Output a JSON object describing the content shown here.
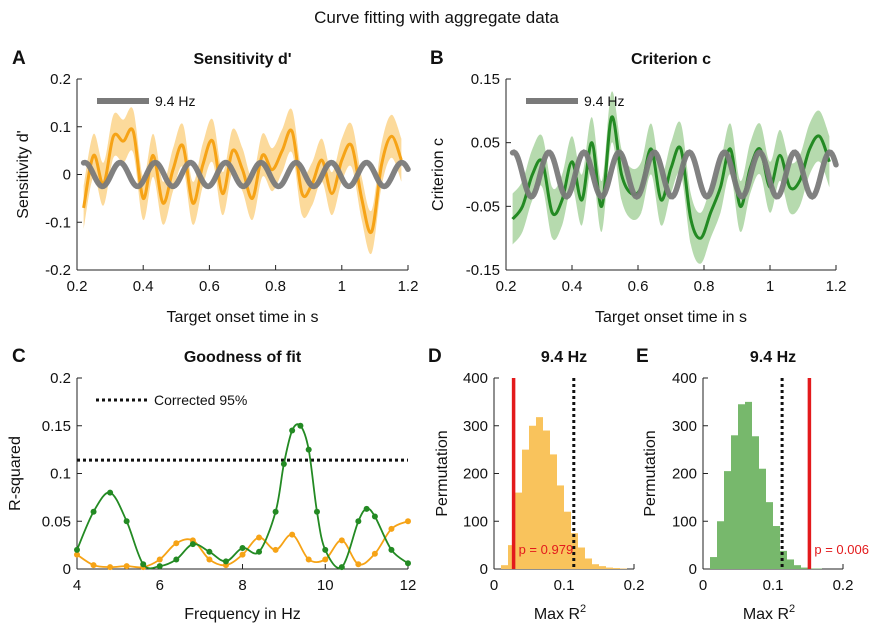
{
  "figure_title": "Curve fitting with aggregate data",
  "colors": {
    "orange": "#f6a316",
    "orange_band": "#fbd48a",
    "green": "#238a23",
    "green_band": "#a9d3a0",
    "gray": "#7a7a7a",
    "red": "#e31a1c",
    "hist_orange": "#f9c35c",
    "hist_green": "#77b86c"
  },
  "chart_data": [
    {
      "panel": "A",
      "type": "line",
      "title": "Sensitivity d'",
      "xlabel": "Target onset time in s",
      "ylabel": "Sensitivity d'",
      "xlim": [
        0.2,
        1.2
      ],
      "ylim": [
        -0.2,
        0.2
      ],
      "xticks": [
        "0.2",
        "0.4",
        "0.6",
        "0.8",
        "1",
        "1.2"
      ],
      "yticks": [
        "-0.2",
        "-0.1",
        "0",
        "0.1",
        "0.2"
      ],
      "series": [
        {
          "name": "",
          "kind": "data-with-band",
          "x": [
            0.22,
            0.25,
            0.28,
            0.31,
            0.34,
            0.37,
            0.4,
            0.43,
            0.46,
            0.49,
            0.52,
            0.55,
            0.58,
            0.61,
            0.64,
            0.67,
            0.7,
            0.73,
            0.76,
            0.79,
            0.82,
            0.85,
            0.88,
            0.91,
            0.94,
            0.97,
            1.0,
            1.03,
            1.06,
            1.09,
            1.12,
            1.15,
            1.18
          ],
          "y": [
            -0.07,
            0.04,
            -0.02,
            0.08,
            0.07,
            0.09,
            -0.05,
            0.04,
            -0.06,
            0.01,
            0.06,
            -0.06,
            0.02,
            0.07,
            -0.04,
            0.05,
            0.01,
            -0.05,
            0.04,
            0.01,
            0.05,
            0.09,
            -0.04,
            -0.02,
            0.03,
            -0.04,
            0.03,
            0.06,
            -0.05,
            -0.12,
            0.02,
            0.08,
            0.03
          ],
          "band": 0.045
        },
        {
          "name": "9.4 Hz",
          "kind": "sine-fit",
          "frequency_hz": 9.4,
          "amplitude": 0.025,
          "x_range": [
            0.22,
            1.2
          ]
        }
      ],
      "legend": [
        {
          "label": "9.4 Hz"
        }
      ],
      "legend_position": "top-left"
    },
    {
      "panel": "B",
      "type": "line",
      "title": "Criterion c",
      "xlabel": "Target onset time in s",
      "ylabel": "Criterion c",
      "xlim": [
        0.2,
        1.2
      ],
      "ylim": [
        -0.15,
        0.15
      ],
      "xticks": [
        "0.2",
        "0.4",
        "0.6",
        "0.8",
        "1",
        "1.2"
      ],
      "yticks": [
        "-0.15",
        "-0.05",
        "0.05",
        "0.15"
      ],
      "series": [
        {
          "name": "",
          "kind": "data-with-band",
          "x": [
            0.22,
            0.25,
            0.28,
            0.31,
            0.34,
            0.37,
            0.4,
            0.43,
            0.46,
            0.49,
            0.52,
            0.55,
            0.58,
            0.61,
            0.64,
            0.67,
            0.7,
            0.73,
            0.76,
            0.79,
            0.82,
            0.85,
            0.88,
            0.91,
            0.94,
            0.97,
            1.0,
            1.03,
            1.06,
            1.09,
            1.12,
            1.15,
            1.18
          ],
          "y": [
            -0.07,
            -0.05,
            0.0,
            0.02,
            -0.06,
            -0.04,
            0.02,
            -0.04,
            0.05,
            -0.05,
            0.09,
            0.0,
            -0.03,
            -0.02,
            0.04,
            -0.04,
            0.01,
            0.04,
            -0.07,
            -0.1,
            -0.06,
            -0.02,
            0.04,
            -0.05,
            0.01,
            0.04,
            -0.02,
            0.03,
            -0.02,
            -0.01,
            0.04,
            0.06,
            0.02
          ],
          "band": 0.04
        },
        {
          "name": "9.4 Hz",
          "kind": "sine-fit",
          "frequency_hz": 9.4,
          "amplitude": 0.035,
          "x_range": [
            0.22,
            1.2
          ]
        }
      ],
      "legend": [
        {
          "label": "9.4 Hz"
        }
      ],
      "legend_position": "top-left"
    },
    {
      "panel": "C",
      "type": "line",
      "title": "Goodness of fit",
      "xlabel": "Frequency in Hz",
      "ylabel": "R-squared",
      "xlim": [
        4,
        12
      ],
      "ylim": [
        0,
        0.2
      ],
      "xticks": [
        "4",
        "6",
        "8",
        "10",
        "12"
      ],
      "yticks": [
        "0",
        "0.05",
        "0.1",
        "0.15",
        "0.2"
      ],
      "threshold": {
        "label": "Corrected 95%",
        "value": 0.114
      },
      "series": [
        {
          "name": "",
          "color": "green",
          "x": [
            4.0,
            4.4,
            4.8,
            5.2,
            5.6,
            6.0,
            6.4,
            6.8,
            7.2,
            7.6,
            8.0,
            8.4,
            8.8,
            9.0,
            9.2,
            9.4,
            9.6,
            9.8,
            10.0,
            10.4,
            10.8,
            11.0,
            11.2,
            11.6,
            12.0
          ],
          "y": [
            0.02,
            0.06,
            0.08,
            0.05,
            0.005,
            0.003,
            0.01,
            0.026,
            0.018,
            0.008,
            0.022,
            0.018,
            0.06,
            0.11,
            0.145,
            0.15,
            0.125,
            0.06,
            0.02,
            0.002,
            0.05,
            0.063,
            0.055,
            0.02,
            0.006
          ]
        },
        {
          "name": "",
          "color": "orange",
          "x": [
            4.0,
            4.4,
            4.8,
            5.2,
            5.6,
            6.0,
            6.4,
            6.8,
            7.2,
            7.6,
            8.0,
            8.4,
            8.8,
            9.2,
            9.6,
            10.0,
            10.4,
            10.8,
            11.2,
            11.6,
            12.0
          ],
          "y": [
            0.015,
            0.004,
            0.002,
            0.003,
            0.002,
            0.01,
            0.027,
            0.03,
            0.01,
            0.004,
            0.015,
            0.033,
            0.02,
            0.036,
            0.01,
            0.01,
            0.03,
            0.005,
            0.016,
            0.042,
            0.05
          ]
        }
      ]
    },
    {
      "panel": "D",
      "type": "bar",
      "title": "9.4 Hz",
      "xlabel": "Max R",
      "xlabel_superscript": "2",
      "ylabel": "Permutation",
      "xlim": [
        0,
        0.2
      ],
      "ylim": [
        0,
        400
      ],
      "xticks": [
        "0",
        "0.1",
        "0.2"
      ],
      "yticks": [
        "0",
        "100",
        "200",
        "300",
        "400"
      ],
      "bin_width": 0.01,
      "bin_starts": [
        0.01,
        0.02,
        0.03,
        0.04,
        0.05,
        0.06,
        0.07,
        0.08,
        0.09,
        0.1,
        0.11,
        0.12,
        0.13,
        0.14,
        0.15,
        0.16,
        0.17,
        0.18
      ],
      "values": [
        8,
        50,
        160,
        250,
        300,
        318,
        290,
        240,
        175,
        120,
        75,
        45,
        22,
        10,
        6,
        3,
        2,
        1
      ],
      "observed": {
        "value": 0.028,
        "label": "p = 0.979"
      },
      "threshold_value": 0.114
    },
    {
      "panel": "E",
      "type": "bar",
      "title": "9.4 Hz",
      "xlabel": "Max R",
      "xlabel_superscript": "2",
      "ylabel": "Permutation",
      "xlim": [
        0,
        0.2
      ],
      "ylim": [
        0,
        400
      ],
      "xticks": [
        "0",
        "0.1",
        "0.2"
      ],
      "yticks": [
        "0",
        "100",
        "200",
        "300",
        "400"
      ],
      "bin_width": 0.01,
      "bin_starts": [
        0.01,
        0.02,
        0.03,
        0.04,
        0.05,
        0.06,
        0.07,
        0.08,
        0.09,
        0.1,
        0.11,
        0.12,
        0.13,
        0.14,
        0.15,
        0.16
      ],
      "values": [
        25,
        100,
        205,
        280,
        345,
        350,
        278,
        210,
        140,
        90,
        38,
        20,
        8,
        3,
        1,
        1
      ],
      "observed": {
        "value": 0.152,
        "label": "p = 0.006"
      },
      "threshold_value": 0.113
    }
  ]
}
